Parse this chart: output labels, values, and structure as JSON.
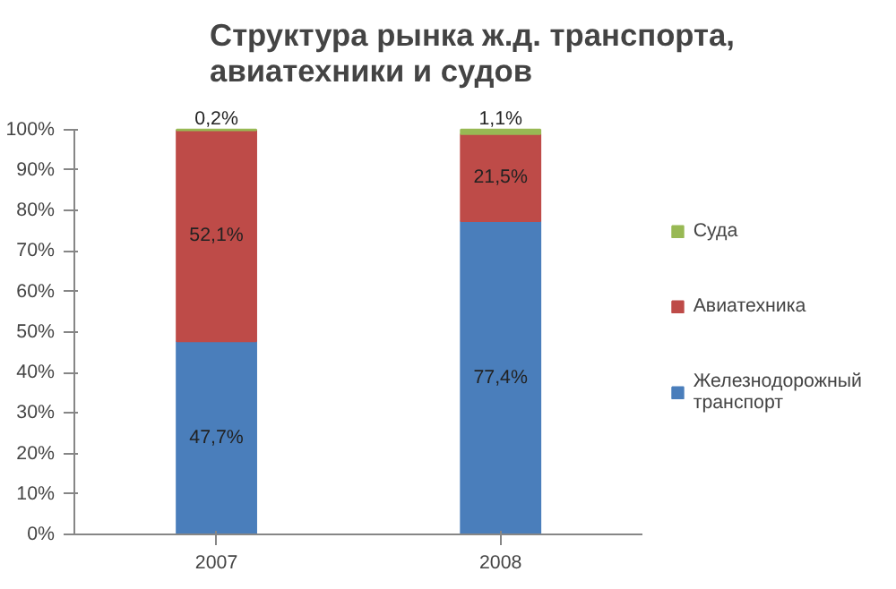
{
  "chart_data": {
    "type": "bar",
    "stacked": true,
    "title": "Структура рынка ж.д. транспорта, авиатехники и судов",
    "categories": [
      "2007",
      "2008"
    ],
    "series": [
      {
        "name": "Железнодорожный транспорт",
        "color": "#4a7ebb",
        "values": [
          47.7,
          77.4
        ],
        "value_labels": [
          "47,7%",
          "77,4%"
        ]
      },
      {
        "name": "Авиатехника",
        "color": "#be4b48",
        "values": [
          52.1,
          21.5
        ],
        "value_labels": [
          "52,1%",
          "21,5%"
        ]
      },
      {
        "name": "Суда",
        "color": "#98b954",
        "values": [
          0.2,
          1.1
        ],
        "value_labels": [
          "0,2%",
          "1,1%"
        ]
      }
    ],
    "ylim": [
      0,
      100
    ],
    "yticks": [
      {
        "value": 0,
        "label": "0%"
      },
      {
        "value": 10,
        "label": "10%"
      },
      {
        "value": 20,
        "label": "20%"
      },
      {
        "value": 30,
        "label": "30%"
      },
      {
        "value": 40,
        "label": "40%"
      },
      {
        "value": 50,
        "label": "50%"
      },
      {
        "value": 60,
        "label": "60%"
      },
      {
        "value": 70,
        "label": "70%"
      },
      {
        "value": 80,
        "label": "80%"
      },
      {
        "value": 90,
        "label": "90%"
      },
      {
        "value": 100,
        "label": "100%"
      }
    ],
    "legend": "right",
    "grid": false
  }
}
